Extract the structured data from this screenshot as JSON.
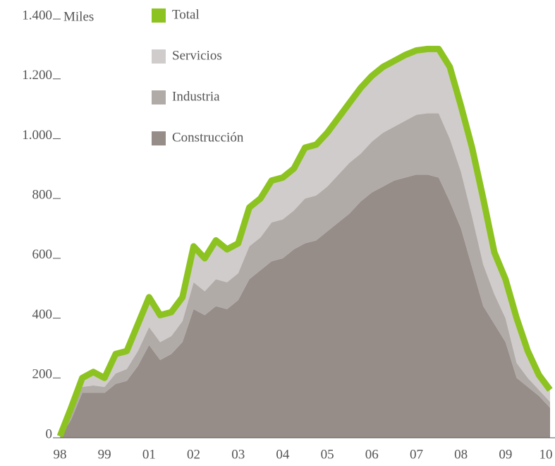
{
  "chart_data": {
    "type": "area",
    "stacked": true,
    "y_label": "Miles",
    "categories": [
      "98",
      null,
      null,
      null,
      "99",
      null,
      null,
      null,
      "01",
      null,
      null,
      null,
      "02",
      null,
      null,
      null,
      "03",
      null,
      null,
      null,
      "04",
      null,
      null,
      null,
      "05",
      null,
      null,
      null,
      "06",
      null,
      null,
      null,
      "07",
      null,
      null,
      null,
      "08",
      null,
      null,
      null,
      "09",
      null,
      null,
      null,
      "10"
    ],
    "series": [
      {
        "name": "Total",
        "type": "line",
        "color": "#8cc320",
        "values": [
          5,
          100,
          200,
          220,
          200,
          280,
          290,
          380,
          470,
          410,
          420,
          470,
          640,
          600,
          660,
          630,
          650,
          770,
          800,
          860,
          870,
          900,
          970,
          980,
          1020,
          1070,
          1120,
          1170,
          1210,
          1240,
          1260,
          1280,
          1295,
          1300,
          1300,
          1240,
          1110,
          970,
          800,
          620,
          530,
          400,
          290,
          210,
          160
        ]
      },
      {
        "name": "Servicios",
        "color": "#d0cccb",
        "values": [
          2,
          20,
          30,
          45,
          30,
          65,
          60,
          90,
          100,
          90,
          80,
          80,
          120,
          110,
          130,
          110,
          100,
          130,
          130,
          140,
          140,
          140,
          170,
          170,
          180,
          190,
          200,
          220,
          220,
          220,
          220,
          220,
          215,
          215,
          215,
          240,
          220,
          230,
          220,
          140,
          130,
          150,
          90,
          50,
          40
        ]
      },
      {
        "name": "Industria",
        "color": "#b1aba8",
        "values": [
          3,
          20,
          20,
          25,
          20,
          35,
          40,
          50,
          60,
          60,
          60,
          70,
          90,
          80,
          90,
          90,
          90,
          110,
          110,
          130,
          130,
          130,
          150,
          150,
          150,
          160,
          170,
          160,
          170,
          180,
          180,
          190,
          200,
          205,
          215,
          210,
          190,
          170,
          140,
          100,
          80,
          50,
          30,
          20,
          20
        ]
      },
      {
        "name": "Construcción",
        "color": "#968c88",
        "values": [
          0,
          60,
          150,
          150,
          150,
          180,
          190,
          240,
          310,
          260,
          280,
          320,
          430,
          410,
          440,
          430,
          460,
          530,
          560,
          590,
          600,
          630,
          650,
          660,
          690,
          720,
          750,
          790,
          820,
          840,
          860,
          870,
          880,
          880,
          870,
          790,
          700,
          570,
          440,
          380,
          320,
          200,
          170,
          140,
          100
        ]
      }
    ],
    "ylim": [
      0,
      1400
    ],
    "yticks": [
      0,
      200,
      400,
      600,
      800,
      {
        "value": 1000,
        "label": "1.000"
      },
      {
        "value": 1200,
        "label": "1.200"
      },
      {
        "value": 1400,
        "label": "1.400"
      }
    ],
    "legend": "top-left"
  }
}
